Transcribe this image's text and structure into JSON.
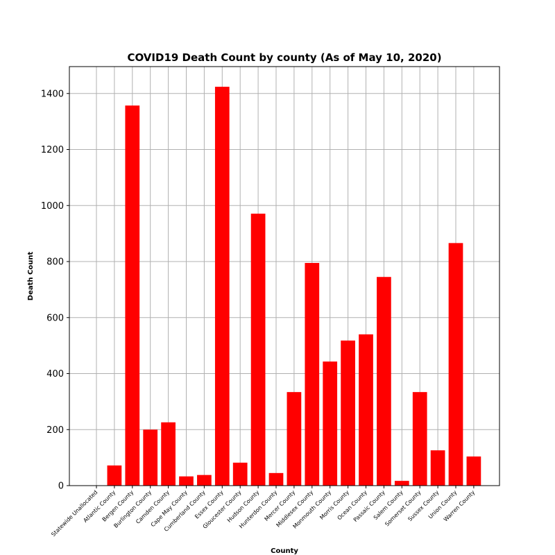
{
  "chart_data": {
    "type": "bar",
    "title": "COVID19 Death Count by county (As of May 10, 2020)",
    "xlabel": "County",
    "ylabel": "Death Count",
    "categories": [
      "Statewide Unallocated",
      "Atlantic County",
      "Bergen County",
      "Burlington County",
      "Camden County",
      "Cape May County",
      "Cumberland County",
      "Essex County",
      "Gloucester County",
      "Hudson County",
      "Hunterdon County",
      "Mercer County",
      "Middlesex County",
      "Monmouth County",
      "Morris County",
      "Ocean County",
      "Passaic County",
      "Salem County",
      "Somerset County",
      "Sussex County",
      "Union County",
      "Warren County"
    ],
    "values": [
      0,
      72,
      1357,
      200,
      226,
      33,
      38,
      1424,
      82,
      971,
      45,
      334,
      795,
      443,
      518,
      540,
      745,
      17,
      334,
      126,
      866,
      104
    ],
    "ylim": [
      0,
      1496
    ],
    "yticks": [
      0,
      200,
      400,
      600,
      800,
      1000,
      1200,
      1400
    ],
    "ytick_labels": [
      "0",
      "200",
      "400",
      "600",
      "800",
      "1000",
      "1200",
      "1400"
    ],
    "grid": true,
    "bar_color": "#ff0000",
    "grid_color": "#b0b0b0"
  }
}
